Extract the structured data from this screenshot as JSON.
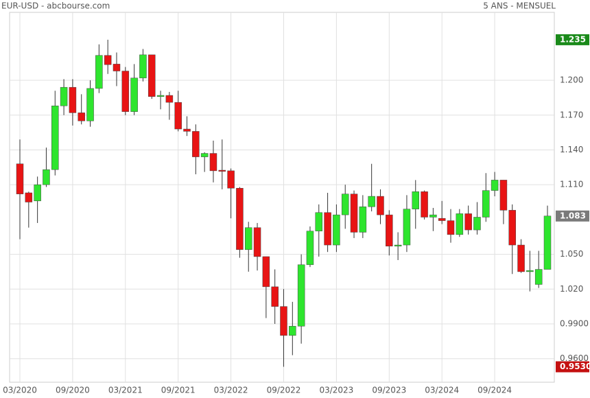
{
  "chart_data": {
    "type": "candlestick",
    "title": "EUR-USD - abcbourse.com",
    "subtitle": "5 ANS - MENSUEL",
    "categories": [
      "03/2020",
      null,
      null,
      null,
      null,
      null,
      "09/2020",
      null,
      null,
      null,
      null,
      null,
      "03/2021",
      null,
      null,
      null,
      null,
      null,
      "09/2021",
      null,
      null,
      null,
      null,
      null,
      "03/2022",
      null,
      null,
      null,
      null,
      null,
      "09/2022",
      null,
      null,
      null,
      null,
      null,
      "03/2023",
      null,
      null,
      null,
      null,
      null,
      "09/2023",
      null,
      null,
      null,
      null,
      null,
      "03/2024",
      null,
      null,
      null,
      null,
      null,
      "09/2024",
      null,
      null,
      null,
      null,
      null,
      null
    ],
    "open": [
      1.128,
      1.103,
      1.096,
      1.11,
      1.123,
      1.178,
      1.194,
      1.172,
      1.165,
      1.193,
      1.2215,
      1.214,
      1.208,
      1.173,
      1.202,
      1.222,
      1.186,
      1.187,
      1.181,
      1.158,
      1.156,
      1.134,
      1.137,
      1.1225,
      1.122,
      1.107,
      1.054,
      1.073,
      1.048,
      1.022,
      1.005,
      0.98,
      0.988,
      1.041,
      1.07,
      1.086,
      1.058,
      1.084,
      1.102,
      1.069,
      1.091,
      1.1,
      1.084,
      1.057,
      1.058,
      1.089,
      1.104,
      1.082,
      1.081,
      1.079,
      1.067,
      1.085,
      1.071,
      1.082,
      1.105,
      1.114,
      1.088,
      1.058,
      1.035,
      1.024,
      1.037
    ],
    "high": [
      1.149,
      1.104,
      1.117,
      1.142,
      1.191,
      1.201,
      1.201,
      1.188,
      1.2,
      1.231,
      1.235,
      1.224,
      1.2115,
      1.214,
      1.227,
      1.222,
      1.191,
      1.19,
      1.191,
      1.169,
      1.162,
      1.138,
      1.148,
      1.149,
      1.124,
      1.108,
      1.078,
      1.077,
      1.048,
      1.037,
      1.02,
      1.009,
      1.05,
      1.074,
      1.093,
      1.103,
      1.093,
      1.11,
      1.105,
      1.101,
      1.128,
      1.106,
      1.088,
      1.069,
      1.101,
      1.114,
      1.105,
      1.09,
      1.096,
      1.089,
      1.089,
      1.092,
      1.095,
      1.12,
      1.121,
      1.114,
      1.093,
      1.063,
      1.053,
      1.053,
      1.092
    ],
    "low": [
      1.063,
      1.073,
      1.077,
      1.108,
      1.118,
      1.17,
      1.161,
      1.162,
      1.16,
      1.189,
      1.2055,
      1.195,
      1.17,
      1.17,
      1.199,
      1.184,
      1.175,
      1.166,
      1.156,
      1.152,
      1.119,
      1.121,
      1.112,
      1.106,
      1.081,
      1.047,
      1.035,
      1.036,
      0.995,
      0.99,
      0.953,
      0.963,
      0.973,
      1.039,
      1.048,
      1.052,
      1.052,
      1.072,
      1.064,
      1.064,
      1.087,
      1.076,
      1.049,
      1.045,
      1.052,
      1.072,
      1.08,
      1.07,
      1.076,
      1.06,
      1.065,
      1.067,
      1.067,
      1.078,
      1.1,
      1.076,
      1.033,
      1.034,
      1.018,
      1.021,
      1.037
    ],
    "close": [
      1.102,
      1.095,
      1.11,
      1.123,
      1.178,
      1.194,
      1.172,
      1.165,
      1.193,
      1.2215,
      1.2135,
      1.208,
      1.173,
      1.202,
      1.222,
      1.186,
      1.187,
      1.181,
      1.158,
      1.156,
      1.134,
      1.137,
      1.122,
      1.1215,
      1.107,
      1.054,
      1.073,
      1.048,
      1.022,
      1.005,
      0.98,
      0.988,
      1.041,
      1.07,
      1.086,
      1.058,
      1.084,
      1.102,
      1.069,
      1.091,
      1.1,
      1.084,
      1.057,
      1.058,
      1.089,
      1.104,
      1.082,
      1.084,
      1.079,
      1.067,
      1.085,
      1.071,
      1.082,
      1.105,
      1.114,
      1.088,
      1.058,
      1.035,
      1.036,
      1.037,
      1.083
    ],
    "up_color": "#2ee52e",
    "down_color": "#e81414",
    "ylim": [
      0.9397,
      1.2586
    ],
    "yticks": [
      {
        "value": 0.96,
        "label": "0.9600"
      },
      {
        "value": 0.99,
        "label": "0.9900"
      },
      {
        "value": 1.02,
        "label": "1.020"
      },
      {
        "value": 1.05,
        "label": "1.050"
      },
      {
        "value": 1.11,
        "label": "1.110"
      },
      {
        "value": 1.14,
        "label": "1.140"
      },
      {
        "value": 1.17,
        "label": "1.170"
      },
      {
        "value": 1.2,
        "label": "1.200"
      }
    ],
    "grid": true,
    "highlights": [
      {
        "value": 1.235,
        "label": "1.235",
        "color": "#1a8a1a"
      },
      {
        "value": 1.083,
        "label": "1.083",
        "color": "#7a7a7a"
      },
      {
        "value": 0.953,
        "label": "0.9530",
        "color": "#c41010"
      }
    ]
  }
}
